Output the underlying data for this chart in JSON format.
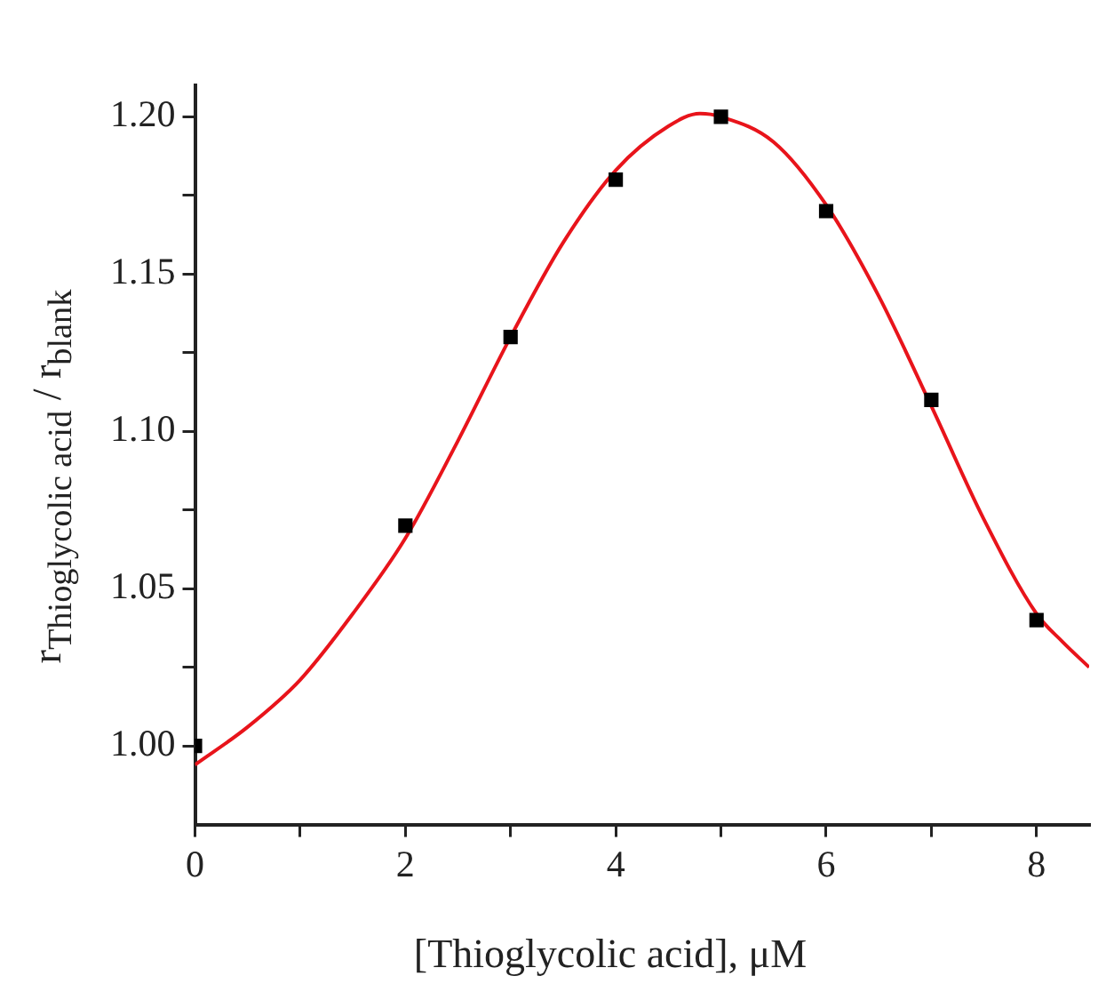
{
  "chart_data": {
    "type": "scatter",
    "xlabel": "[Thioglycolic acid], μM",
    "ylabel": "r$_{Thioglycolic acid}$ / r$_{blank}$",
    "xlim": [
      0,
      8.5
    ],
    "ylim": [
      0.975,
      1.21
    ],
    "xticks": [
      0,
      {
        "value": 1,
        "label": null
      },
      2,
      {
        "value": 3,
        "label": null
      },
      4,
      {
        "value": 5,
        "label": null
      },
      6,
      {
        "value": 7,
        "label": null
      },
      8
    ],
    "yticks": [
      {
        "value": 1,
        "label": "1.00"
      },
      {
        "value": 1.025,
        "label": null
      },
      1.05,
      {
        "value": 1.075,
        "label": null
      },
      {
        "value": 1.1,
        "label": "1.10"
      },
      {
        "value": 1.125,
        "label": null
      },
      1.15,
      {
        "value": 1.175,
        "label": null
      },
      {
        "value": 1.2,
        "label": "1.20"
      }
    ],
    "grid": false,
    "legend": false,
    "series": [
      {
        "marker": "square",
        "color": "#000000",
        "x": [
          0,
          2,
          3,
          4,
          5,
          6,
          7,
          8
        ],
        "values": [
          1.0,
          1.07,
          1.13,
          1.18,
          1.2,
          1.17,
          1.11,
          1.04
        ]
      },
      {
        "type": "line",
        "marker": "none",
        "color": "#e8141b",
        "x": [
          0,
          0.5,
          1,
          1.5,
          2,
          2.5,
          3,
          3.5,
          4,
          4.5,
          4.8,
          5,
          5.5,
          6,
          6.5,
          7,
          7.5,
          8,
          8.25,
          8.5
        ],
        "values": [
          0.994,
          1.006,
          1.021,
          1.042,
          1.066,
          1.097,
          1.13,
          1.16,
          1.183,
          1.197,
          1.201,
          1.2,
          1.192,
          1.172,
          1.143,
          1.108,
          1.072,
          1.042,
          1.033,
          1.025
        ]
      }
    ]
  }
}
